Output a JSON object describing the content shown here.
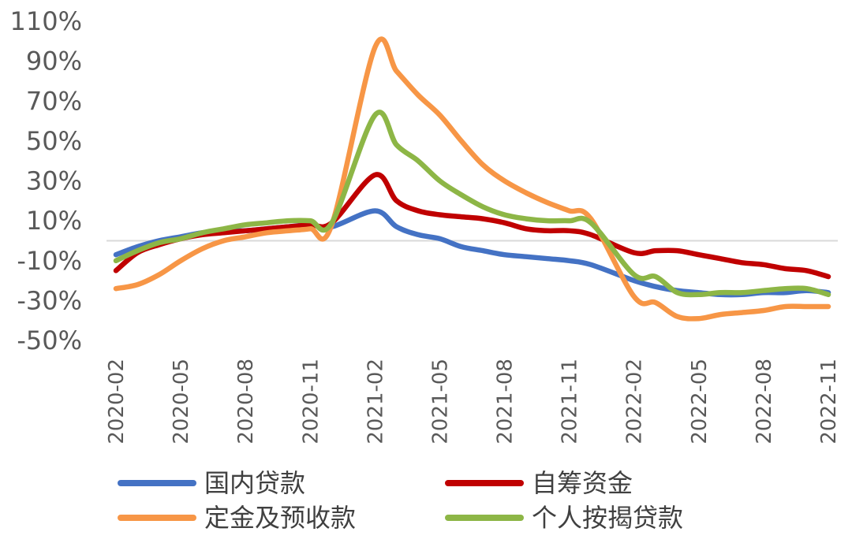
{
  "chart_data": {
    "type": "line",
    "title": "",
    "xlabel": "",
    "ylabel": "",
    "ylim": [
      -50,
      110
    ],
    "y_ticks": [
      "110%",
      "90%",
      "70%",
      "50%",
      "30%",
      "10%",
      "-10%",
      "-30%",
      "-50%"
    ],
    "x_ticks": [
      "2020-02",
      "2020-05",
      "2020-08",
      "2020-11",
      "2021-02",
      "2021-05",
      "2021-08",
      "2021-11",
      "2022-02",
      "2022-05",
      "2022-08",
      "2022-11"
    ],
    "x": [
      "2020-02",
      "2020-03",
      "2020-04",
      "2020-05",
      "2020-06",
      "2020-07",
      "2020-08",
      "2020-09",
      "2020-10",
      "2020-11",
      "2020-12",
      "2021-02",
      "2021-03",
      "2021-04",
      "2021-05",
      "2021-06",
      "2021-07",
      "2021-08",
      "2021-09",
      "2021-10",
      "2021-11",
      "2021-12",
      "2022-02",
      "2022-03",
      "2022-04",
      "2022-05",
      "2022-06",
      "2022-07",
      "2022-08",
      "2022-09",
      "2022-10",
      "2022-11"
    ],
    "legend_position": "bottom",
    "zero_line": true,
    "series": [
      {
        "name": "国内贷款",
        "color": "#4472C4",
        "values": [
          -7,
          -3,
          0,
          2,
          4,
          5,
          5,
          6,
          7,
          8,
          7,
          15,
          7,
          3,
          1,
          -3,
          -5,
          -7,
          -8,
          -9,
          -10,
          -12,
          -20,
          -23,
          -25,
          -26,
          -27,
          -27,
          -26,
          -26,
          -25,
          -26
        ]
      },
      {
        "name": "自筹资金",
        "color": "#C00000",
        "values": [
          -15,
          -6,
          -2,
          1,
          3,
          4,
          5,
          6,
          7,
          8,
          9,
          33,
          20,
          15,
          13,
          12,
          11,
          9,
          6,
          5,
          5,
          3,
          -6,
          -5,
          -5,
          -7,
          -9,
          -11,
          -12,
          -14,
          -15,
          -18
        ]
      },
      {
        "name": "定金及预收款",
        "color": "#F79646",
        "values": [
          -24,
          -22,
          -17,
          -10,
          -4,
          0,
          2,
          4,
          5,
          6,
          8,
          97,
          85,
          73,
          63,
          50,
          38,
          30,
          24,
          19,
          15,
          11,
          -28,
          -31,
          -38,
          -39,
          -37,
          -36,
          -35,
          -33,
          -33,
          -33
        ]
      },
      {
        "name": "个人按揭贷款",
        "color": "#8DB646",
        "values": [
          -10,
          -5,
          -1,
          1,
          4,
          6,
          8,
          9,
          10,
          10,
          9,
          63,
          48,
          40,
          30,
          23,
          17,
          13,
          11,
          10,
          10,
          9,
          -17,
          -18,
          -26,
          -27,
          -26,
          -26,
          -25,
          -24,
          -24,
          -27
        ]
      }
    ]
  }
}
